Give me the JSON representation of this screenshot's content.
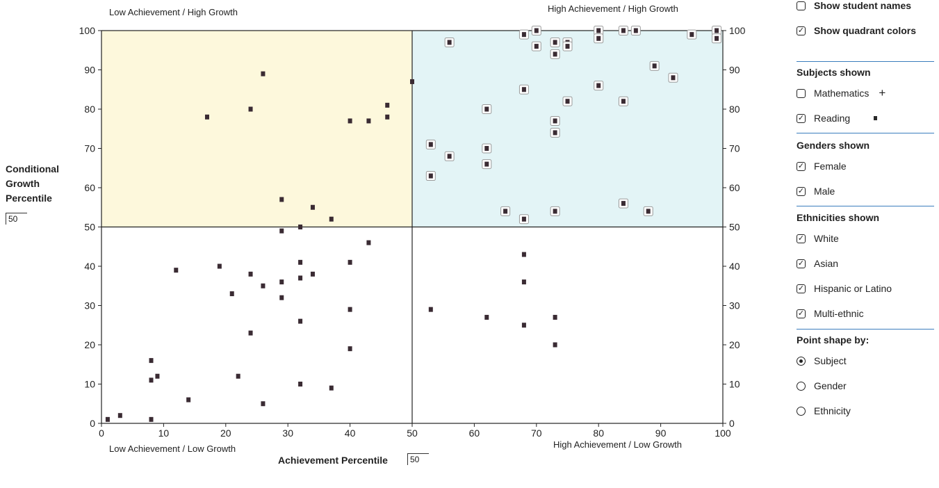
{
  "quadrants": {
    "top_left": "Low Achievement / High Growth",
    "top_right": "High Achievement / High Growth",
    "bottom_left": "Low Achievement / Low Growth",
    "bottom_right": "High Achievement / Low Growth"
  },
  "y_axis_label": "Conditional Growth Percentile",
  "y_axis_label_lines": [
    "Conditional",
    "Growth",
    "Percentile"
  ],
  "y_threshold": "50",
  "x_axis_label": "Achievement Percentile",
  "x_threshold": "50",
  "colors": {
    "low_high_fill": "#fdf8dc",
    "high_high_fill": "#e3f4f6",
    "point": "#3a2b33",
    "separator": "#3a7dbd"
  },
  "options": {
    "show_student_names": {
      "label": "Show student names",
      "checked": false
    },
    "show_quadrant_colors": {
      "label": "Show quadrant colors",
      "checked": true
    }
  },
  "subjects": {
    "heading": "Subjects shown",
    "mathematics": {
      "label": "Mathematics",
      "checked": false,
      "marker": "+"
    },
    "reading": {
      "label": "Reading",
      "checked": true,
      "marker": "square"
    }
  },
  "genders": {
    "heading": "Genders shown",
    "female": {
      "label": "Female",
      "checked": true
    },
    "male": {
      "label": "Male",
      "checked": true
    }
  },
  "ethnicities": {
    "heading": "Ethnicities shown",
    "white": {
      "label": "White",
      "checked": true
    },
    "asian": {
      "label": "Asian",
      "checked": true
    },
    "hispanic": {
      "label": "Hispanic or Latino",
      "checked": true
    },
    "multi": {
      "label": "Multi-ethnic",
      "checked": true
    }
  },
  "point_shape": {
    "heading": "Point shape by:",
    "subject": {
      "label": "Subject",
      "selected": true
    },
    "gender": {
      "label": "Gender",
      "selected": false
    },
    "ethnicity": {
      "label": "Ethnicity",
      "selected": false
    }
  },
  "chart_data": {
    "type": "scatter",
    "xlabel": "Achievement Percentile",
    "ylabel": "Conditional Growth Percentile",
    "xlim": [
      0,
      100
    ],
    "ylim": [
      0,
      100
    ],
    "x_ticks": [
      0,
      10,
      20,
      30,
      40,
      50,
      60,
      70,
      80,
      90,
      100
    ],
    "y_ticks": [
      0,
      10,
      20,
      30,
      40,
      50,
      60,
      70,
      80,
      90,
      100
    ],
    "threshold_x": 50,
    "threshold_y": 50,
    "grid": false,
    "series": [
      {
        "name": "Reading",
        "points": [
          [
            1,
            1
          ],
          [
            3,
            2
          ],
          [
            8,
            1
          ],
          [
            8,
            11
          ],
          [
            8,
            16
          ],
          [
            9,
            12
          ],
          [
            12,
            39
          ],
          [
            14,
            6
          ],
          [
            17,
            78
          ],
          [
            19,
            40
          ],
          [
            21,
            33
          ],
          [
            22,
            12
          ],
          [
            24,
            80
          ],
          [
            24,
            38
          ],
          [
            24,
            23
          ],
          [
            26,
            89
          ],
          [
            26,
            35
          ],
          [
            26,
            5
          ],
          [
            29,
            57
          ],
          [
            29,
            49
          ],
          [
            29,
            36
          ],
          [
            29,
            32
          ],
          [
            32,
            50
          ],
          [
            32,
            41
          ],
          [
            32,
            37
          ],
          [
            32,
            26
          ],
          [
            32,
            10
          ],
          [
            34,
            55
          ],
          [
            34,
            38
          ],
          [
            37,
            52
          ],
          [
            37,
            9
          ],
          [
            40,
            77
          ],
          [
            40,
            41
          ],
          [
            40,
            29
          ],
          [
            40,
            19
          ],
          [
            43,
            77
          ],
          [
            43,
            46
          ],
          [
            46,
            81
          ],
          [
            46,
            78
          ],
          [
            50,
            87
          ],
          [
            53,
            71
          ],
          [
            53,
            63
          ],
          [
            53,
            29
          ],
          [
            56,
            97
          ],
          [
            56,
            68
          ],
          [
            62,
            80
          ],
          [
            62,
            70
          ],
          [
            62,
            66
          ],
          [
            62,
            27
          ],
          [
            65,
            54
          ],
          [
            68,
            99
          ],
          [
            68,
            85
          ],
          [
            68,
            52
          ],
          [
            68,
            43
          ],
          [
            68,
            36
          ],
          [
            68,
            25
          ],
          [
            70,
            100
          ],
          [
            70,
            96
          ],
          [
            73,
            97
          ],
          [
            73,
            94
          ],
          [
            73,
            77
          ],
          [
            73,
            74
          ],
          [
            73,
            54
          ],
          [
            73,
            27
          ],
          [
            73,
            20
          ],
          [
            75,
            97
          ],
          [
            75,
            96
          ],
          [
            75,
            82
          ],
          [
            80,
            100
          ],
          [
            80,
            98
          ],
          [
            80,
            86
          ],
          [
            84,
            100
          ],
          [
            84,
            82
          ],
          [
            84,
            56
          ],
          [
            86,
            100
          ],
          [
            88,
            54
          ],
          [
            89,
            91
          ],
          [
            92,
            88
          ],
          [
            95,
            99
          ],
          [
            99,
            100
          ],
          [
            99,
            98
          ]
        ]
      }
    ]
  }
}
